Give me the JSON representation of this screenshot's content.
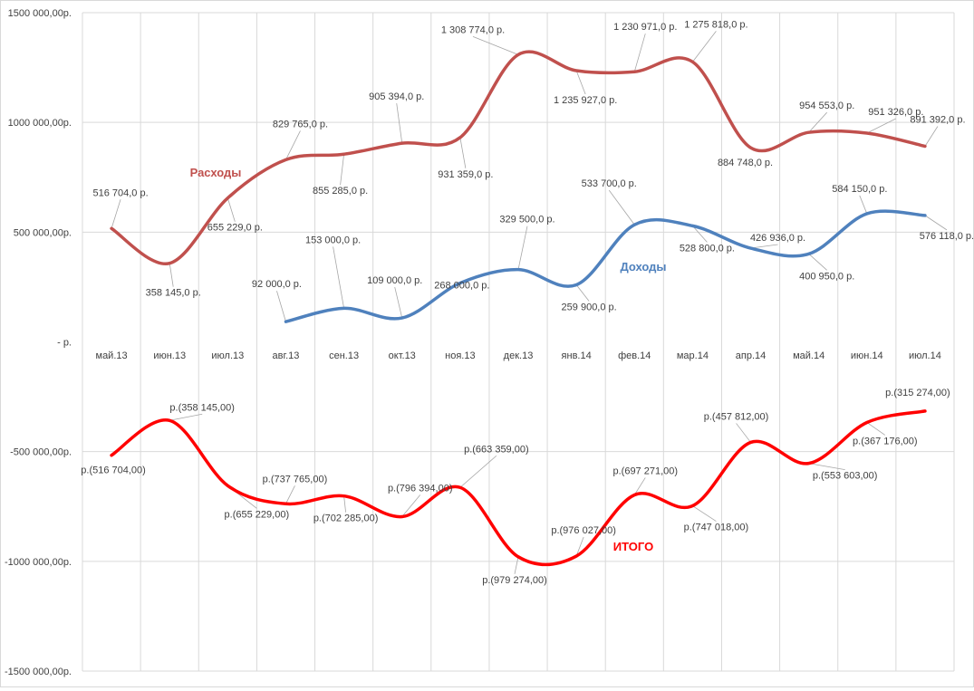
{
  "chart_data": {
    "type": "line",
    "categories": [
      "май.13",
      "июн.13",
      "июл.13",
      "авг.13",
      "сен.13",
      "окт.13",
      "ноя.13",
      "дек.13",
      "янв.14",
      "фев.14",
      "мар.14",
      "апр.14",
      "май.14",
      "июн.14",
      "июл.14"
    ],
    "y_ticks": [
      {
        "value": 1500000,
        "label": "1500 000,00р."
      },
      {
        "value": 1000000,
        "label": "1000 000,00р."
      },
      {
        "value": 500000,
        "label": "500 000,00р."
      },
      {
        "value": 0,
        "label": "-   р."
      },
      {
        "value": -500000,
        "label": "-500 000,00р."
      },
      {
        "value": -1000000,
        "label": "-1000 000,00р."
      },
      {
        "value": -1500000,
        "label": "-1500 000,00р."
      }
    ],
    "ylim": [
      -1500000,
      1500000
    ],
    "grid": true,
    "series": [
      {
        "name": "Расходы",
        "color": "#c0504d",
        "values": [
          516704,
          358145,
          655229,
          829765,
          855285,
          905394,
          931359,
          1308774,
          1235927,
          1230971,
          1275818,
          884748,
          954553,
          951326,
          891392
        ],
        "labels": [
          "516 704,0 р.",
          "358 145,0 р.",
          "655 229,0 р.",
          "829 765,0 р.",
          "855 285,0 р.",
          "905 394,0 р.",
          "931 359,0 р.",
          "1 308 774,0 р.",
          "1 235 927,0 р.",
          "1 230 971,0 р.",
          "1 275 818,0 р.",
          "884 748,0 р.",
          "954 553,0 р.",
          "951 326,0 р.",
          "891 392,0 р."
        ]
      },
      {
        "name": "Доходы",
        "color": "#4f81bd",
        "values": [
          null,
          null,
          null,
          92000,
          153000,
          109000,
          268000,
          329500,
          259900,
          533700,
          528800,
          426936,
          400950,
          584150,
          576118
        ],
        "labels": [
          null,
          null,
          null,
          "92 000,0 р.",
          "153 000,0 р.",
          "109 000,0 р.",
          "268 000,0 р.",
          "329 500,0 р.",
          "259 900,0 р.",
          "533 700,0 р.",
          "528 800,0 р.",
          "426 936,0 р.",
          "400 950,0 р.",
          "584 150,0 р.",
          "576 118,0 р."
        ]
      },
      {
        "name": "ИТОГО",
        "color": "#ff0000",
        "values": [
          -516704,
          -358145,
          -655229,
          -737765,
          -702285,
          -796394,
          -663359,
          -979274,
          -976027,
          -697271,
          -747018,
          -457812,
          -553603,
          -367176,
          -315274
        ],
        "labels": [
          "р.(516 704,00)",
          "р.(358 145,00)",
          "р.(655 229,00)",
          "р.(737 765,00)",
          "р.(702 285,00)",
          "р.(796 394,00)",
          "р.(663 359,00)",
          "р.(979 274,00)",
          "р.(976 027,00)",
          "р.(697 271,00)",
          "р.(747 018,00)",
          "р.(457 812,00)",
          "р.(553 603,00)",
          "р.(367 176,00)",
          "р.(315 274,00)"
        ]
      }
    ]
  }
}
